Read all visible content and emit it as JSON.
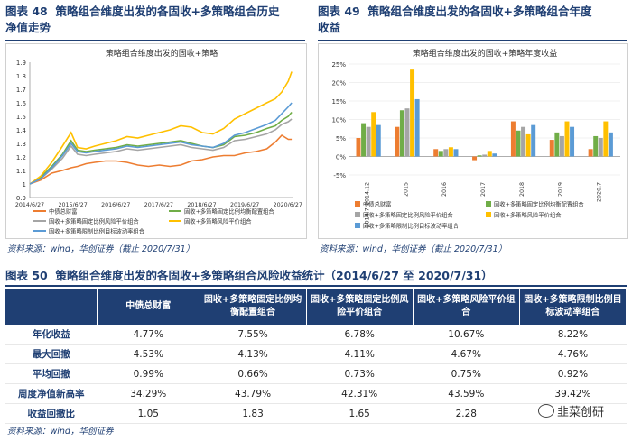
{
  "fig48": {
    "number": "图表 48",
    "title_line1": "策略组合维度出发的各固收+多策略组合历史",
    "title_line2": "净值走势",
    "source": "资料来源：wind，华创证券（截止 2020/7/31）"
  },
  "fig49": {
    "number": "图表 49",
    "title_line1": "策略组合维度出发的各固收+多策略组合年度",
    "title_line2": "收益",
    "source": "资料来源：wind，华创证券（截止 2020/7/31）"
  },
  "fig50": {
    "number": "图表 50",
    "title": "策略组合维度出发的各固收+多策略组合风险收益统计（2014/6/27 至 2020/7/31）",
    "source": "资料来源：wind，华创证券"
  },
  "colors": {
    "navy": "#1f3f73",
    "orange": "#ed7d31",
    "green": "#70ad47",
    "gray": "#a5a5a5",
    "yellow": "#ffc000",
    "blue": "#5b9bd5"
  },
  "chart_data": [
    {
      "type": "line",
      "title": "策略组合维度出发的固收+策略",
      "xlabel": "",
      "ylabel": "",
      "ylim": [
        0.9,
        1.9
      ],
      "yticks": [
        "0.9",
        "1",
        "1.1",
        "1.2",
        "1.3",
        "1.4",
        "1.5",
        "1.6",
        "1.7",
        "1.8",
        "1.9"
      ],
      "xticks": [
        "2014/6/27",
        "2015/6/27",
        "2016/6/27",
        "2017/6/27",
        "2018/6/27",
        "2019/6/27",
        "2020/6/27"
      ],
      "legend": [
        "中债总财富",
        "固收+多策略固定比例均衡配置组合",
        "固收+多策略固定比例风险平价组合",
        "固收+多策略风险平价组合",
        "固收+多策略限制比例目标波动率组合"
      ],
      "x": [
        2014.49,
        2014.75,
        2015.0,
        2015.25,
        2015.45,
        2015.6,
        2015.8,
        2016.0,
        2016.25,
        2016.5,
        2016.75,
        2017.0,
        2017.25,
        2017.5,
        2017.75,
        2018.0,
        2018.25,
        2018.5,
        2018.75,
        2019.0,
        2019.25,
        2019.5,
        2019.75,
        2020.0,
        2020.2,
        2020.35,
        2020.5,
        2020.58
      ],
      "series": [
        {
          "name": "中债总财富",
          "values": [
            1.0,
            1.03,
            1.08,
            1.1,
            1.12,
            1.13,
            1.15,
            1.16,
            1.17,
            1.17,
            1.16,
            1.14,
            1.13,
            1.14,
            1.13,
            1.14,
            1.17,
            1.18,
            1.2,
            1.21,
            1.21,
            1.23,
            1.24,
            1.26,
            1.31,
            1.36,
            1.33,
            1.33
          ]
        },
        {
          "name": "固收+多策略固定比例均衡配置组合",
          "values": [
            1.0,
            1.05,
            1.13,
            1.22,
            1.32,
            1.25,
            1.24,
            1.25,
            1.26,
            1.27,
            1.29,
            1.28,
            1.29,
            1.3,
            1.31,
            1.32,
            1.3,
            1.28,
            1.27,
            1.29,
            1.35,
            1.36,
            1.38,
            1.41,
            1.43,
            1.47,
            1.5,
            1.53
          ]
        },
        {
          "name": "固收+多策略固定比例风险平价组合",
          "values": [
            1.0,
            1.04,
            1.11,
            1.19,
            1.28,
            1.22,
            1.21,
            1.22,
            1.23,
            1.24,
            1.26,
            1.25,
            1.26,
            1.27,
            1.28,
            1.29,
            1.27,
            1.26,
            1.25,
            1.27,
            1.32,
            1.33,
            1.35,
            1.37,
            1.4,
            1.44,
            1.46,
            1.48
          ]
        },
        {
          "name": "固收+多策略风险平价组合",
          "values": [
            1.0,
            1.06,
            1.16,
            1.28,
            1.38,
            1.27,
            1.26,
            1.28,
            1.3,
            1.32,
            1.35,
            1.34,
            1.36,
            1.38,
            1.4,
            1.43,
            1.42,
            1.38,
            1.37,
            1.41,
            1.48,
            1.52,
            1.56,
            1.6,
            1.63,
            1.68,
            1.76,
            1.83
          ]
        },
        {
          "name": "固收+多策略限制比例目标波动率组合",
          "values": [
            1.0,
            1.04,
            1.12,
            1.21,
            1.3,
            1.24,
            1.23,
            1.24,
            1.25,
            1.26,
            1.28,
            1.27,
            1.28,
            1.29,
            1.3,
            1.31,
            1.29,
            1.28,
            1.27,
            1.3,
            1.36,
            1.38,
            1.41,
            1.44,
            1.47,
            1.52,
            1.57,
            1.6
          ]
        }
      ]
    },
    {
      "type": "bar",
      "title": "策略组合维度出发的固收+策略年度收益",
      "xlabel": "",
      "ylabel": "",
      "ylim": [
        -0.05,
        0.25
      ],
      "yticks": [
        "-5%",
        "0%",
        "5%",
        "10%",
        "15%",
        "20%",
        "25%"
      ],
      "categories": [
        "2014.7-2014.12",
        "2015",
        "2016",
        "2017",
        "2018",
        "2019",
        "2020.7"
      ],
      "legend": [
        "中债总财富",
        "固收+多策略固定比例均衡配置组合",
        "固收+多策略固定比例风险平价组合",
        "固收+多策略风险平价组合",
        "固收+多策略限制比例目标波动率组合"
      ],
      "series": [
        {
          "name": "中债总财富",
          "values": [
            0.05,
            0.08,
            0.02,
            -0.01,
            0.095,
            0.045,
            0.02
          ]
        },
        {
          "name": "固收+多策略固定比例均衡配置组合",
          "values": [
            0.09,
            0.125,
            0.015,
            0.003,
            0.07,
            0.065,
            0.055
          ]
        },
        {
          "name": "固收+多策略固定比例风险平价组合",
          "values": [
            0.08,
            0.13,
            0.02,
            0.005,
            0.08,
            0.055,
            0.05
          ]
        },
        {
          "name": "固收+多策略风险平价组合",
          "values": [
            0.12,
            0.235,
            0.025,
            0.015,
            0.06,
            0.095,
            0.095
          ]
        },
        {
          "name": "固收+多策略限制比例目标波动率组合",
          "values": [
            0.085,
            0.155,
            0.02,
            0.008,
            0.085,
            0.08,
            0.065
          ]
        }
      ]
    },
    {
      "type": "table",
      "columns": [
        "",
        "中债总财富",
        "固收+多策略固定比例均衡配置组合",
        "固收+多策略固定比例风险平价组合",
        "固收+多策略风险平价组合",
        "固收+多策略限制比例目标波动率组合"
      ],
      "rows": [
        [
          "年化收益",
          "4.77%",
          "7.55%",
          "6.78%",
          "10.67%",
          "8.22%"
        ],
        [
          "最大回撤",
          "4.53%",
          "4.13%",
          "4.11%",
          "4.67%",
          "4.76%"
        ],
        [
          "平均回撤",
          "0.99%",
          "0.66%",
          "0.73%",
          "0.75%",
          "0.92%"
        ],
        [
          "周度净值新高率",
          "34.29%",
          "43.79%",
          "42.31%",
          "43.59%",
          "39.42%"
        ],
        [
          "收益回撤比",
          "1.05",
          "1.83",
          "1.65",
          "2.28",
          ""
        ]
      ]
    }
  ],
  "watermark": "韭菜创研"
}
